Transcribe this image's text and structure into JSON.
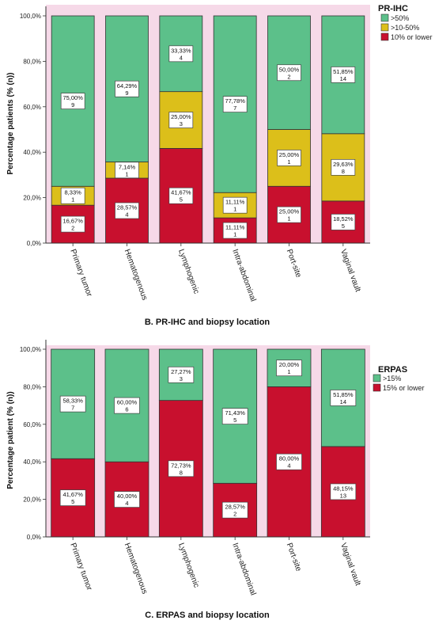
{
  "chart_data": [
    {
      "type": "bar",
      "stacked": true,
      "caption": "B. PR-IHC and biopsy location",
      "ylabel": "Percentage patients (% (n))",
      "ylim": [
        0,
        100
      ],
      "yticks": [
        "0,0%",
        "20,0%",
        "40,0%",
        "60,0%",
        "80,0%",
        "100,0%"
      ],
      "categories": [
        "Primary tumor",
        "Hematogenous",
        "Lymphogenic",
        "Intra-abdominal",
        "Port-site",
        "Vaginal vault"
      ],
      "legend": {
        "title": "PR-IHC",
        "position": "top-right"
      },
      "series": [
        {
          "name": "10% or lower",
          "color": "#c8102e",
          "values": [
            16.67,
            28.57,
            41.67,
            11.11,
            25.0,
            18.52
          ],
          "labels": [
            "16,67%",
            "28,57%",
            "41,67%",
            "11,11%",
            "25,00%",
            "18,52%"
          ],
          "n": [
            "2",
            "4",
            "5",
            "1",
            "1",
            "5"
          ]
        },
        {
          "name": ">10-50%",
          "color": "#dcbf1a",
          "values": [
            8.33,
            7.14,
            25.0,
            11.11,
            25.0,
            29.63
          ],
          "labels": [
            "8,33%",
            "7,14%",
            "25,00%",
            "11,11%",
            "25,00%",
            "29,63%"
          ],
          "n": [
            "1",
            "1",
            "3",
            "1",
            "1",
            "8"
          ]
        },
        {
          "name": ">50%",
          "color": "#5cc08a",
          "values": [
            75.0,
            64.29,
            33.33,
            77.78,
            50.0,
            51.85
          ],
          "labels": [
            "75,00%",
            "64,29%",
            "33,33%",
            "77,78%",
            "50,00%",
            "51,85%"
          ],
          "n": [
            "9",
            "9",
            "4",
            "7",
            "2",
            "14"
          ]
        }
      ]
    },
    {
      "type": "bar",
      "stacked": true,
      "caption": "C. ERPAS and biopsy location",
      "ylabel": "Percentage patient (% (n))",
      "ylim": [
        0,
        100
      ],
      "yticks": [
        "0,0%",
        "20,0%",
        "40,0%",
        "60,0%",
        "80,0%",
        "100,0%"
      ],
      "categories": [
        "Primary tumor",
        "Hematogenous",
        "Lymphogenic",
        "Intra-abdominal",
        "Port-site",
        "Vaginal vault"
      ],
      "legend": {
        "title": "ERPAS",
        "position": "top-right"
      },
      "series": [
        {
          "name": "15% or lower",
          "color": "#c8102e",
          "values": [
            41.67,
            40.0,
            72.73,
            28.57,
            80.0,
            48.15
          ],
          "labels": [
            "41,67%",
            "40,00%",
            "72,73%",
            "28,57%",
            "80,00%",
            "48,15%"
          ],
          "n": [
            "5",
            "4",
            "8",
            "2",
            "4",
            "13"
          ]
        },
        {
          "name": ">15%",
          "color": "#5cc08a",
          "values": [
            58.33,
            60.0,
            27.27,
            71.43,
            20.0,
            51.85
          ],
          "labels": [
            "58,33%",
            "60,00%",
            "27,27%",
            "71,43%",
            "20,00%",
            "51,85%"
          ],
          "n": [
            "7",
            "6",
            "3",
            "5",
            "1",
            "14"
          ]
        }
      ]
    }
  ]
}
